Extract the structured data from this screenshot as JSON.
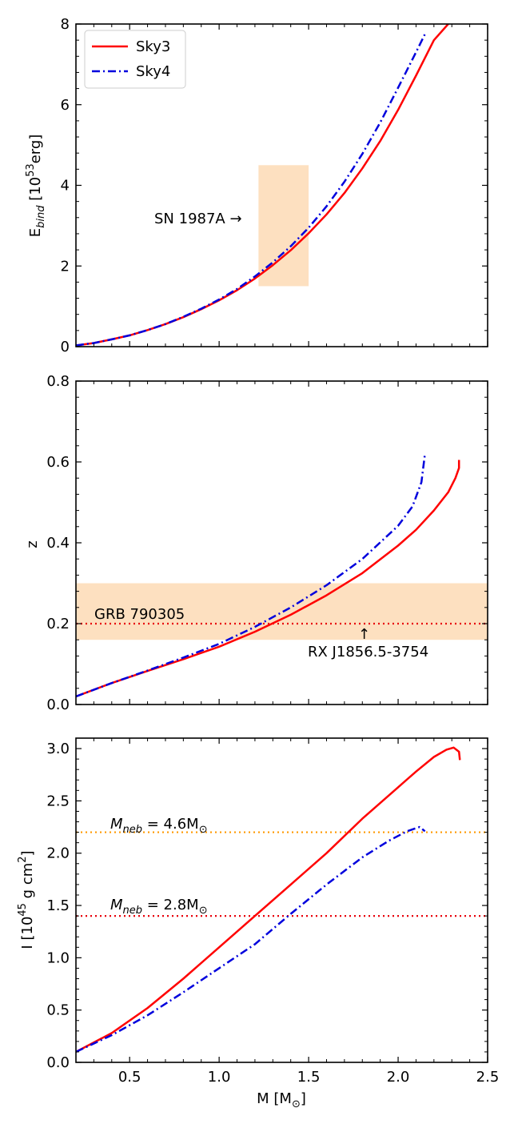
{
  "colors": {
    "sky3": "#ff0000",
    "sky4": "#0000dd",
    "band": "#fde0c0",
    "orange": "#ff9900",
    "red_annot": "#e8000b"
  },
  "chart_data": [
    {
      "type": "line",
      "id": "ebind",
      "ylabel_main": "E",
      "ylabel_sub": "bind",
      "ylabel_rest": " [10",
      "ylabel_sup": "53",
      "ylabel_end": "erg]",
      "xlim": [
        0.2,
        2.5
      ],
      "ylim": [
        0,
        8
      ],
      "yticks": [
        "0",
        "2",
        "4",
        "6",
        "8"
      ],
      "ytick_values": [
        0,
        2,
        4,
        6,
        8
      ],
      "legend": {
        "position": "top-left",
        "entries": [
          "Sky3",
          "Sky4"
        ]
      },
      "series": [
        {
          "name": "Sky3",
          "style": "solid",
          "x": [
            0.2,
            0.3,
            0.4,
            0.5,
            0.6,
            0.7,
            0.8,
            0.9,
            1.0,
            1.1,
            1.2,
            1.3,
            1.4,
            1.5,
            1.6,
            1.7,
            1.8,
            1.9,
            2.0,
            2.1,
            2.2,
            2.28
          ],
          "y": [
            0.03,
            0.09,
            0.18,
            0.28,
            0.41,
            0.56,
            0.73,
            0.93,
            1.15,
            1.4,
            1.69,
            2.02,
            2.39,
            2.81,
            3.28,
            3.81,
            4.42,
            5.1,
            5.87,
            6.72,
            7.6,
            8.0
          ]
        },
        {
          "name": "Sky4",
          "style": "dashdot",
          "x": [
            0.2,
            0.3,
            0.4,
            0.5,
            0.6,
            0.7,
            0.8,
            0.9,
            1.0,
            1.1,
            1.2,
            1.3,
            1.4,
            1.5,
            1.6,
            1.7,
            1.8,
            1.9,
            2.0,
            2.1,
            2.15
          ],
          "y": [
            0.03,
            0.09,
            0.18,
            0.28,
            0.41,
            0.56,
            0.74,
            0.94,
            1.17,
            1.43,
            1.74,
            2.09,
            2.49,
            2.95,
            3.48,
            4.09,
            4.78,
            5.56,
            6.42,
            7.3,
            7.75
          ]
        }
      ],
      "shaded_region": {
        "x": [
          1.22,
          1.5
        ],
        "y": [
          1.5,
          4.5
        ]
      },
      "annotation": {
        "text": "SN 1987A",
        "arrow": "→",
        "x": 1.2,
        "y": 3.15
      }
    },
    {
      "type": "line",
      "id": "redshift",
      "ylabel": "z",
      "xlim": [
        0.2,
        2.5
      ],
      "ylim": [
        0,
        0.8
      ],
      "yticks": [
        "0.0",
        "0.2",
        "0.4",
        "0.6",
        "0.8"
      ],
      "ytick_values": [
        0,
        0.2,
        0.4,
        0.6,
        0.8
      ],
      "series": [
        {
          "name": "Sky3",
          "style": "solid",
          "x": [
            0.2,
            0.4,
            0.6,
            0.8,
            1.0,
            1.2,
            1.4,
            1.6,
            1.8,
            2.0,
            2.1,
            2.2,
            2.28,
            2.32,
            2.34,
            2.34
          ],
          "y": [
            0.02,
            0.053,
            0.083,
            0.112,
            0.143,
            0.18,
            0.222,
            0.27,
            0.325,
            0.393,
            0.432,
            0.48,
            0.525,
            0.56,
            0.585,
            0.605
          ]
        },
        {
          "name": "Sky4",
          "style": "dashdot",
          "x": [
            0.2,
            0.4,
            0.6,
            0.8,
            1.0,
            1.2,
            1.4,
            1.6,
            1.8,
            2.0,
            2.08,
            2.13,
            2.15
          ],
          "y": [
            0.02,
            0.053,
            0.084,
            0.116,
            0.15,
            0.192,
            0.24,
            0.295,
            0.36,
            0.442,
            0.49,
            0.55,
            0.62
          ]
        }
      ],
      "shaded_region": {
        "y": [
          0.16,
          0.3
        ]
      },
      "hline": {
        "y": 0.2,
        "style": "dotted"
      },
      "annotations": [
        {
          "text": "GRB 790305",
          "x": 0.29,
          "y": 0.215
        },
        {
          "text": "RX J1856.5-3754",
          "arrow": "↑",
          "x": 1.82,
          "y": 0.125
        }
      ]
    },
    {
      "type": "line",
      "id": "inertia",
      "ylabel_main": "I [10",
      "ylabel_sup": "45",
      "ylabel_mid": " g cm",
      "ylabel_sup2": "2",
      "ylabel_end": "]",
      "xlabel_main": "M [M",
      "xlabel_sub": "⊙",
      "xlabel_end": "]",
      "xlim": [
        0.2,
        2.5
      ],
      "ylim": [
        0,
        3.1
      ],
      "xticks": [
        "0.5",
        "1.0",
        "1.5",
        "2.0",
        "2.5"
      ],
      "xtick_values": [
        0.5,
        1.0,
        1.5,
        2.0,
        2.5
      ],
      "yticks": [
        "0.0",
        "0.5",
        "1.0",
        "1.5",
        "2.0",
        "2.5",
        "3.0"
      ],
      "ytick_values": [
        0,
        0.5,
        1.0,
        1.5,
        2.0,
        2.5,
        3.0
      ],
      "series": [
        {
          "name": "Sky3",
          "style": "solid",
          "x": [
            0.2,
            0.4,
            0.6,
            0.8,
            1.0,
            1.2,
            1.4,
            1.6,
            1.8,
            2.0,
            2.1,
            2.2,
            2.27,
            2.31,
            2.34,
            2.345
          ],
          "y": [
            0.1,
            0.28,
            0.52,
            0.8,
            1.1,
            1.4,
            1.7,
            2.0,
            2.33,
            2.63,
            2.78,
            2.92,
            2.99,
            3.01,
            2.97,
            2.89
          ]
        },
        {
          "name": "Sky4",
          "style": "dashdot",
          "x": [
            0.2,
            0.4,
            0.6,
            0.8,
            1.0,
            1.2,
            1.4,
            1.6,
            1.8,
            1.95,
            2.05,
            2.12,
            2.15
          ],
          "y": [
            0.1,
            0.26,
            0.45,
            0.67,
            0.9,
            1.13,
            1.42,
            1.7,
            1.96,
            2.12,
            2.21,
            2.25,
            2.21
          ]
        }
      ],
      "hlines": [
        {
          "y": 2.2,
          "color": "orange",
          "label_main": "M",
          "label_sub": "neb",
          "label_rest": " = 4.6M",
          "label_sub2": "⊙"
        },
        {
          "y": 1.4,
          "color": "red",
          "label_main": "M",
          "label_sub": "neb",
          "label_rest": " = 2.8M",
          "label_sub2": "⊙"
        }
      ]
    }
  ]
}
